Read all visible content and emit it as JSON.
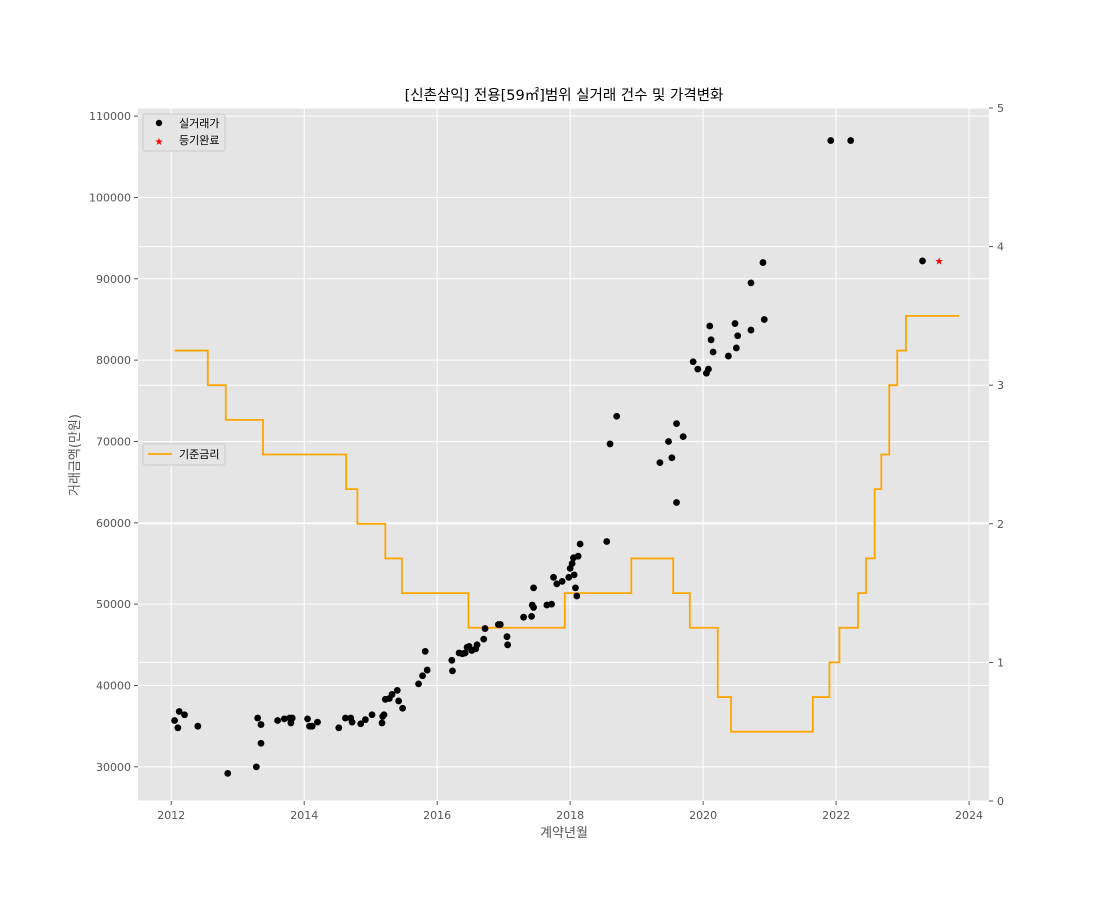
{
  "chart_data": {
    "type": "scatter",
    "title": "[신촌삼익] 전용[59㎡]범위 실거래 건수 및 가격변화",
    "xlabel": "계약년월",
    "ylabel": "거래금액(만원)",
    "xlim": [
      2011.5,
      2024.3
    ],
    "ylim": [
      25800,
      111000
    ],
    "y2lim": [
      0,
      5
    ],
    "x_ticks": [
      2012,
      2014,
      2016,
      2018,
      2020,
      2022,
      2024
    ],
    "y_ticks": [
      30000,
      40000,
      50000,
      60000,
      70000,
      80000,
      90000,
      100000,
      110000
    ],
    "y2_ticks": [
      0,
      1,
      2,
      3,
      4,
      5
    ],
    "grid": true,
    "colors": {
      "background": "#e5e5e5",
      "grid": "#ffffff",
      "trade": "#000000",
      "registered": "#ff0000",
      "rate": "#ffa500"
    },
    "legend_top": {
      "placement": "top-left",
      "entries": [
        {
          "label": "실거래가",
          "marker": "dot",
          "color": "#000000"
        },
        {
          "label": "등기완료",
          "marker": "star",
          "color": "#ff0000"
        }
      ]
    },
    "legend_rate": {
      "placement": "center-left",
      "entries": [
        {
          "label": "기준금리",
          "marker": "line",
          "color": "#ffa500"
        }
      ]
    },
    "series": [
      {
        "name": "실거래가",
        "kind": "scatter",
        "points": [
          [
            2012.05,
            35700
          ],
          [
            2012.1,
            34800
          ],
          [
            2012.12,
            36800
          ],
          [
            2012.2,
            36400
          ],
          [
            2012.4,
            35000
          ],
          [
            2012.85,
            29200
          ],
          [
            2013.28,
            30000
          ],
          [
            2013.3,
            36000
          ],
          [
            2013.35,
            35200
          ],
          [
            2013.35,
            32900
          ],
          [
            2013.6,
            35700
          ],
          [
            2013.7,
            35900
          ],
          [
            2013.78,
            36000
          ],
          [
            2013.8,
            35400
          ],
          [
            2013.82,
            36000
          ],
          [
            2014.05,
            35900
          ],
          [
            2014.08,
            35000
          ],
          [
            2014.12,
            35000
          ],
          [
            2014.2,
            35500
          ],
          [
            2014.52,
            34800
          ],
          [
            2014.62,
            36000
          ],
          [
            2014.7,
            36000
          ],
          [
            2014.72,
            35500
          ],
          [
            2014.85,
            35300
          ],
          [
            2014.92,
            35800
          ],
          [
            2015.02,
            36400
          ],
          [
            2015.17,
            35400
          ],
          [
            2015.18,
            36200
          ],
          [
            2015.2,
            36400
          ],
          [
            2015.22,
            38300
          ],
          [
            2015.28,
            38400
          ],
          [
            2015.32,
            38900
          ],
          [
            2015.4,
            39400
          ],
          [
            2015.42,
            38100
          ],
          [
            2015.48,
            37200
          ],
          [
            2015.72,
            40200
          ],
          [
            2015.78,
            41200
          ],
          [
            2015.82,
            44200
          ],
          [
            2015.85,
            41900
          ],
          [
            2016.22,
            43100
          ],
          [
            2016.23,
            41800
          ],
          [
            2016.33,
            44000
          ],
          [
            2016.38,
            43900
          ],
          [
            2016.42,
            44000
          ],
          [
            2016.45,
            44700
          ],
          [
            2016.48,
            44800
          ],
          [
            2016.52,
            44300
          ],
          [
            2016.58,
            44500
          ],
          [
            2016.6,
            45000
          ],
          [
            2016.7,
            45700
          ],
          [
            2016.72,
            47000
          ],
          [
            2016.92,
            47500
          ],
          [
            2016.95,
            47500
          ],
          [
            2017.05,
            46000
          ],
          [
            2017.06,
            45000
          ],
          [
            2017.3,
            48400
          ],
          [
            2017.42,
            48500
          ],
          [
            2017.43,
            49900
          ],
          [
            2017.45,
            49600
          ],
          [
            2017.45,
            52000
          ],
          [
            2017.65,
            49900
          ],
          [
            2017.72,
            50000
          ],
          [
            2017.75,
            53300
          ],
          [
            2017.8,
            52500
          ],
          [
            2017.88,
            52800
          ],
          [
            2017.98,
            53300
          ],
          [
            2018.0,
            54400
          ],
          [
            2018.03,
            55000
          ],
          [
            2018.05,
            55700
          ],
          [
            2018.06,
            53600
          ],
          [
            2018.08,
            52000
          ],
          [
            2018.1,
            51000
          ],
          [
            2018.12,
            55900
          ],
          [
            2018.15,
            57400
          ],
          [
            2018.55,
            57700
          ],
          [
            2018.6,
            69700
          ],
          [
            2018.7,
            73100
          ],
          [
            2019.35,
            67400
          ],
          [
            2019.48,
            70000
          ],
          [
            2019.53,
            68000
          ],
          [
            2019.6,
            62500
          ],
          [
            2019.6,
            72200
          ],
          [
            2019.7,
            70600
          ],
          [
            2019.85,
            79800
          ],
          [
            2019.92,
            78900
          ],
          [
            2020.05,
            78400
          ],
          [
            2020.08,
            78900
          ],
          [
            2020.1,
            84200
          ],
          [
            2020.12,
            82500
          ],
          [
            2020.15,
            81000
          ],
          [
            2020.38,
            80500
          ],
          [
            2020.48,
            84500
          ],
          [
            2020.5,
            81500
          ],
          [
            2020.52,
            83000
          ],
          [
            2020.72,
            89500
          ],
          [
            2020.72,
            83700
          ],
          [
            2020.9,
            92000
          ],
          [
            2020.92,
            85000
          ],
          [
            2021.92,
            107000
          ],
          [
            2022.22,
            107000
          ],
          [
            2023.3,
            92200
          ]
        ]
      },
      {
        "name": "등기완료",
        "kind": "scatter",
        "points": [
          [
            2023.55,
            92200
          ]
        ]
      },
      {
        "name": "기준금리",
        "kind": "step",
        "axis": "right",
        "steps": [
          [
            2012.05,
            3.25
          ],
          [
            2012.55,
            3.0
          ],
          [
            2012.82,
            2.75
          ],
          [
            2013.38,
            2.5
          ],
          [
            2014.63,
            2.25
          ],
          [
            2014.8,
            2.0
          ],
          [
            2015.22,
            1.75
          ],
          [
            2015.47,
            1.5
          ],
          [
            2016.47,
            1.25
          ],
          [
            2017.92,
            1.5
          ],
          [
            2018.92,
            1.75
          ],
          [
            2019.55,
            1.5
          ],
          [
            2019.8,
            1.25
          ],
          [
            2020.22,
            0.75
          ],
          [
            2020.42,
            0.5
          ],
          [
            2021.65,
            0.75
          ],
          [
            2021.9,
            1.0
          ],
          [
            2022.05,
            1.25
          ],
          [
            2022.33,
            1.5
          ],
          [
            2022.45,
            1.75
          ],
          [
            2022.58,
            2.25
          ],
          [
            2022.68,
            2.5
          ],
          [
            2022.8,
            3.0
          ],
          [
            2022.92,
            3.25
          ],
          [
            2023.05,
            3.5
          ],
          [
            2023.85,
            3.5
          ]
        ]
      }
    ]
  }
}
